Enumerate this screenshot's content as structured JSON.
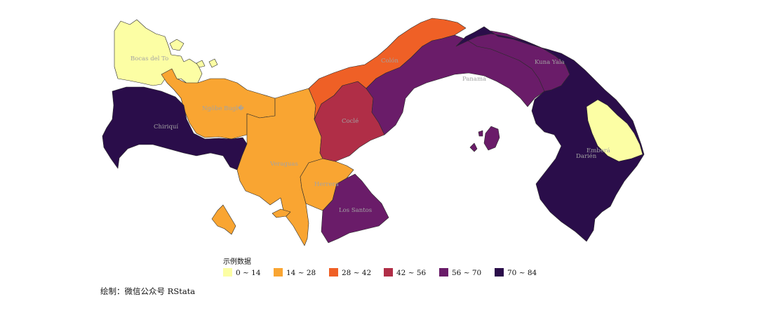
{
  "map": {
    "colors": {
      "c0": "#fcfea4",
      "c1": "#f9a532",
      "c2": "#ef6026",
      "c3": "#b02e47",
      "c4": "#6a1c69",
      "c5": "#2a0d4a"
    },
    "regions": [
      {
        "id": "bocas-del-toro",
        "label": "Bocas del To",
        "bin": "c0"
      },
      {
        "id": "ngobe-bugle",
        "label": "Ngöbe Bugl�",
        "bin": "c1"
      },
      {
        "id": "chiriqui",
        "label": "Chiriquí",
        "bin": "c5"
      },
      {
        "id": "veraguas",
        "label": "Veraguas",
        "bin": "c1"
      },
      {
        "id": "herrera",
        "label": "Herrera",
        "bin": "c1"
      },
      {
        "id": "los-santos",
        "label": "Los Santos",
        "bin": "c4"
      },
      {
        "id": "cocle",
        "label": "Coclé",
        "bin": "c3"
      },
      {
        "id": "colon",
        "label": "Colón",
        "bin": "c2"
      },
      {
        "id": "panama",
        "label": "Panamá",
        "bin": "c4"
      },
      {
        "id": "kuna-yala",
        "label": "Kuna Yala",
        "bin": "c4"
      },
      {
        "id": "darien",
        "label": "Darién",
        "bin": "c5"
      },
      {
        "id": "embera",
        "label": "Emberá",
        "bin": "c0"
      }
    ]
  },
  "legend": {
    "title": "示例数据",
    "items": [
      {
        "label": "0 ~ 14",
        "bin": "c0"
      },
      {
        "label": "14 ~ 28",
        "bin": "c1"
      },
      {
        "label": "28 ~ 42",
        "bin": "c2"
      },
      {
        "label": "42 ~ 56",
        "bin": "c3"
      },
      {
        "label": "56 ~ 70",
        "bin": "c4"
      },
      {
        "label": "70 ~ 84",
        "bin": "c5"
      }
    ]
  },
  "credit": "绘制：微信公众号 RStata"
}
